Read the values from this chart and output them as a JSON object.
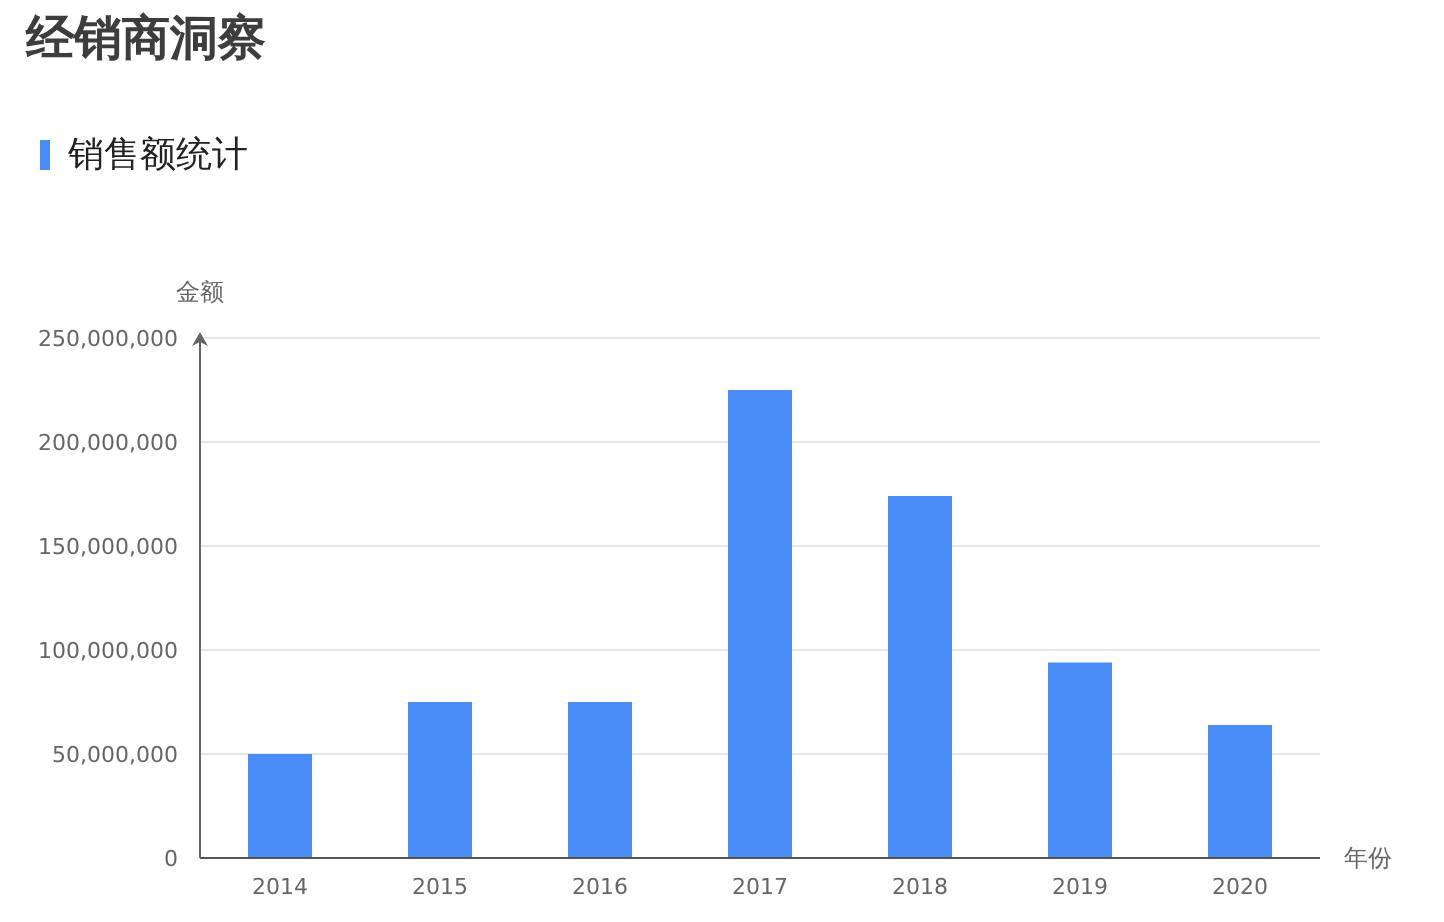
{
  "chart_data": {
    "type": "bar",
    "title": "经销商洞察",
    "subtitle": "销售额统计",
    "xlabel": "年份",
    "ylabel": "金额",
    "categories": [
      "2014",
      "2015",
      "2016",
      "2017",
      "2018",
      "2019",
      "2020"
    ],
    "series": [
      {
        "color": "#4a8cf8",
        "values": [
          50000000,
          75000000,
          75000000,
          225000000,
          174000000,
          94000000,
          64000000
        ]
      }
    ],
    "ylim": [
      0,
      250000000
    ],
    "yticks": [
      0,
      {
        "value": 50000000,
        "label": "50,000,000"
      },
      {
        "value": 100000000,
        "label": "100,000,000"
      },
      {
        "value": 150000000,
        "label": "150,000,000"
      },
      {
        "value": 200000000,
        "label": "200,000,000"
      },
      {
        "value": 250000000,
        "label": "250,000,000"
      }
    ],
    "grid": "y"
  }
}
